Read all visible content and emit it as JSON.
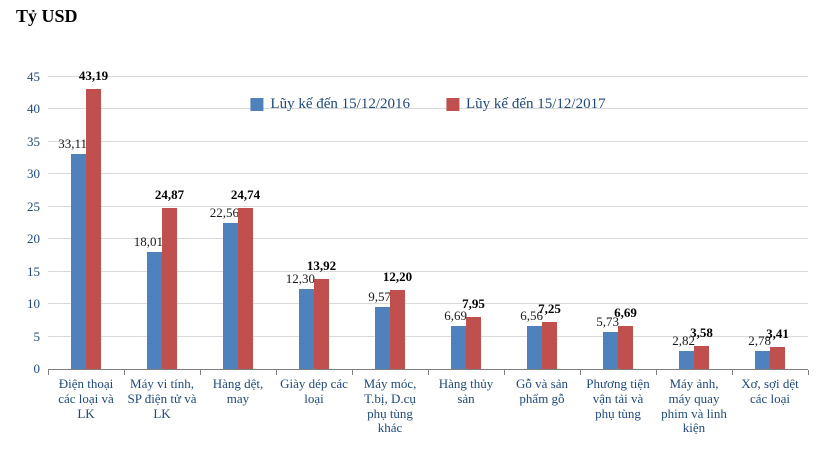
{
  "chart_data": {
    "type": "bar",
    "title": "Tỷ USD",
    "xlabel": "",
    "ylabel": "Tỷ USD",
    "ylim": [
      0,
      45
    ],
    "yticks": [
      0,
      5,
      10,
      15,
      20,
      25,
      30,
      35,
      40,
      45
    ],
    "grid": true,
    "legend_position": "top-center-inside",
    "categories": [
      "Điện thoại các loại và LK",
      "Máy vi tính, SP điện tử và LK",
      "Hàng dệt, may",
      "Giày dép các loại",
      "Máy móc, T.bị, D.cụ phụ tùng khác",
      "Hàng thủy sản",
      "Gỗ và sản phẩm gỗ",
      "Phương tiện vận tải và phụ tùng",
      "Máy ảnh, máy quay phim và linh kiện",
      "Xơ, sợi dệt các loại"
    ],
    "series": [
      {
        "name": "Lũy kế đến 15/12/2016",
        "color": "#4f81bd",
        "values": [
          33.11,
          18.01,
          22.56,
          12.3,
          9.57,
          6.69,
          6.56,
          5.73,
          2.82,
          2.78
        ],
        "labels": [
          "33,11",
          "18,01",
          "22,56",
          "12,30",
          "9,57",
          "6,69",
          "6,56",
          "5,73",
          "2,82",
          "2,78"
        ]
      },
      {
        "name": "Lũy kế đến 15/12/2017",
        "color": "#c0504d",
        "values": [
          43.19,
          24.87,
          24.74,
          13.92,
          12.2,
          7.95,
          7.25,
          6.69,
          3.58,
          3.41
        ],
        "labels": [
          "43,19",
          "24,87",
          "24,74",
          "13,92",
          "12,20",
          "7,95",
          "7,25",
          "6,69",
          "3,58",
          "3,41"
        ]
      }
    ]
  }
}
